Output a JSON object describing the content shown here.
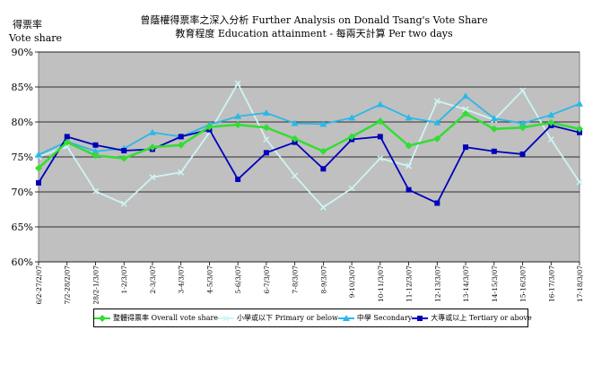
{
  "chart_data": {
    "type": "line",
    "title": "曾蔭權得票率之深入分析 Further Analysis on Donald Tsang's Vote Share",
    "subtitle": "教育程度 Education attainment - 每兩天計算 Per two days",
    "ylabel_zh": "得票率",
    "ylabel_en": "Vote share",
    "ylim": [
      60,
      90
    ],
    "yticks": [
      60,
      65,
      70,
      75,
      80,
      85,
      90
    ],
    "ytick_labels": [
      "60%",
      "65%",
      "70%",
      "75%",
      "80%",
      "85%",
      "90%"
    ],
    "grid": true,
    "legend_position": "bottom",
    "categories": [
      "26/2-27/2/07",
      "27/2-28/2/07",
      "28/2-1/3/07",
      "1-2/3/07",
      "2-3/3/07",
      "3-4/3/07",
      "4-5/3/07",
      "5-6/3/07",
      "6-7/3/07",
      "7-8/3/07",
      "8-9/3/07",
      "9-10/3/07",
      "10-11/3/07",
      "11-12/3/07",
      "12-13/3/07",
      "13-14/3/07",
      "14-15/3/07",
      "15-16/3/07",
      "16-17/3/07",
      "17-18/3/07"
    ],
    "series": [
      {
        "name": "整體得票率 Overall vote share",
        "color": "#33dd33",
        "marker": "diamond",
        "values": [
          73.4,
          77.1,
          75.2,
          74.8,
          76.4,
          76.7,
          79.3,
          79.6,
          79.2,
          77.6,
          75.8,
          77.9,
          80.1,
          76.6,
          77.6,
          81.2,
          79.0,
          79.2,
          79.9,
          79.0
        ]
      },
      {
        "name": "小學或以下 Primary or below",
        "color": "#ccf5f5",
        "marker": "cross",
        "values": [
          75.0,
          76.5,
          70.1,
          68.3,
          72.1,
          72.8,
          78.5,
          85.5,
          77.5,
          72.3,
          67.8,
          70.5,
          74.8,
          73.7,
          83.0,
          81.8,
          80.3,
          84.5,
          77.5,
          71.4
        ]
      },
      {
        "name": "中學 Secondary",
        "color": "#2ab8e8",
        "marker": "triangle",
        "values": [
          75.3,
          77.2,
          75.8,
          76.2,
          78.5,
          77.9,
          79.6,
          80.8,
          81.3,
          79.8,
          79.7,
          80.6,
          82.5,
          80.6,
          79.9,
          83.7,
          80.5,
          79.8,
          81.0,
          82.6
        ]
      },
      {
        "name": "大專或以上 Tertiary or above",
        "color": "#0000bb",
        "marker": "square",
        "values": [
          71.3,
          77.9,
          76.7,
          75.9,
          76.1,
          77.9,
          78.9,
          71.8,
          75.6,
          77.1,
          73.3,
          77.5,
          77.9,
          70.3,
          68.4,
          76.4,
          75.8,
          75.4,
          79.5,
          78.5
        ]
      }
    ]
  }
}
